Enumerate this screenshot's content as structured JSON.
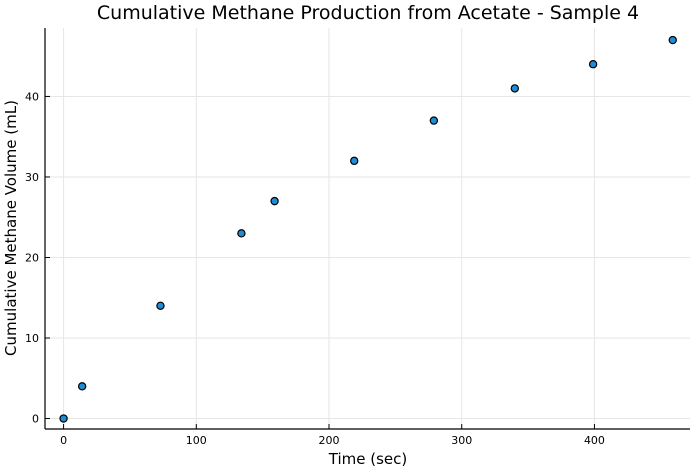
{
  "chart_data": {
    "type": "scatter",
    "title": "Cumulative Methane Production from Acetate - Sample 4",
    "xlabel": "Time (sec)",
    "ylabel": "Cumulative Methane Volume (mL)",
    "xlim": [
      -14,
      472
    ],
    "ylim": [
      -1.3,
      48.5
    ],
    "xticks": [
      0,
      100,
      200,
      300,
      400
    ],
    "yticks": [
      0,
      10,
      20,
      30,
      40
    ],
    "grid": true,
    "legend": "none",
    "marker_color": "#1f8dd6",
    "marker_edge": "#000000",
    "points": [
      {
        "x": 0,
        "y": 0
      },
      {
        "x": 14,
        "y": 4
      },
      {
        "x": 73,
        "y": 14
      },
      {
        "x": 134,
        "y": 23
      },
      {
        "x": 159,
        "y": 27
      },
      {
        "x": 219,
        "y": 32
      },
      {
        "x": 279,
        "y": 37
      },
      {
        "x": 340,
        "y": 41
      },
      {
        "x": 399,
        "y": 44
      },
      {
        "x": 459,
        "y": 47
      }
    ]
  }
}
